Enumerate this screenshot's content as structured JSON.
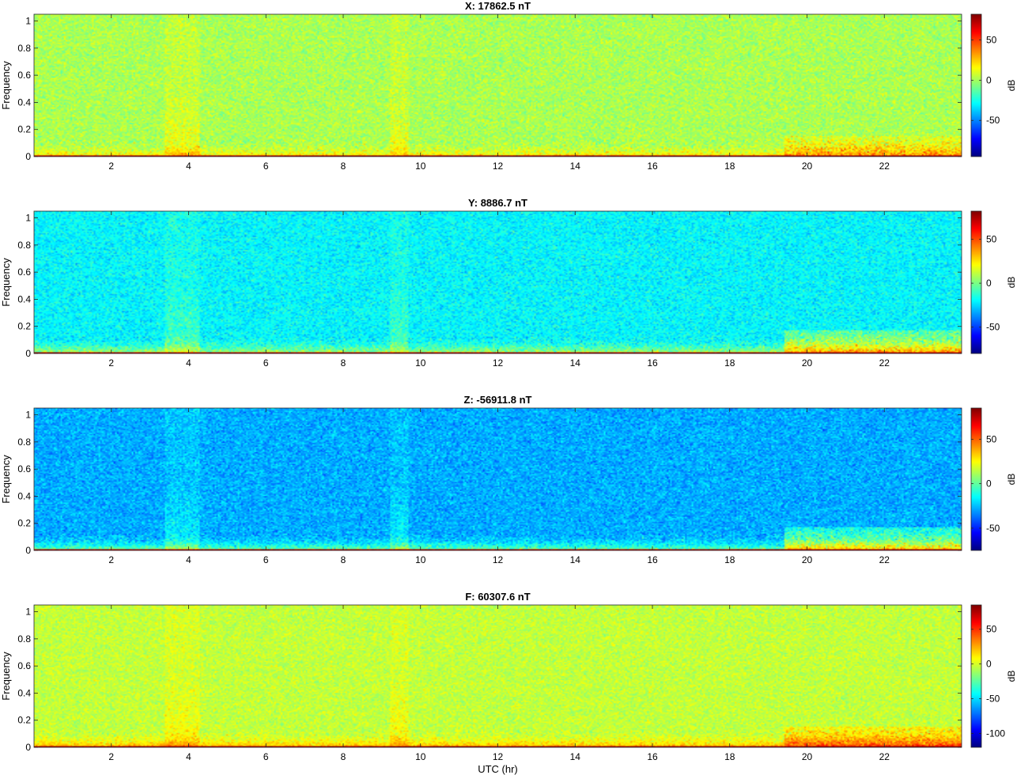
{
  "xlabel": "UTC (hr)",
  "chart_data": [
    {
      "type": "heatmap",
      "title": "X: 17862.5 nT",
      "ylabel": "Frequency",
      "colorbar_label": "dB",
      "xlim": [
        0,
        24
      ],
      "ylim": [
        0,
        1.05
      ],
      "xticks": [
        2,
        4,
        6,
        8,
        10,
        12,
        14,
        16,
        18,
        20,
        22
      ],
      "yticks": [
        0,
        0.2,
        0.4,
        0.6,
        0.8,
        1
      ],
      "clim": [
        -95,
        82
      ],
      "cticks": [
        -50,
        0,
        50
      ],
      "background_db": 1,
      "low_band_db": 20,
      "dc_db": 82,
      "late_band_db": 32,
      "late_band_start_hr": 19.4,
      "late_band_top": 0.15
    },
    {
      "type": "heatmap",
      "title": "Y: 8886.7 nT",
      "ylabel": "Frequency",
      "colorbar_label": "dB",
      "xlim": [
        0,
        24
      ],
      "ylim": [
        0,
        1.05
      ],
      "xticks": [
        2,
        4,
        6,
        8,
        10,
        12,
        14,
        16,
        18,
        20,
        22
      ],
      "yticks": [
        0,
        0.2,
        0.4,
        0.6,
        0.8,
        1
      ],
      "clim": [
        -80,
        82
      ],
      "cticks": [
        -50,
        0,
        50
      ],
      "background_db": -20,
      "low_band_db": 10,
      "dc_db": 82,
      "late_band_db": 35,
      "late_band_start_hr": 19.4,
      "late_band_top": 0.17
    },
    {
      "type": "heatmap",
      "title": "Z: -56911.8 nT",
      "ylabel": "Frequency",
      "colorbar_label": "dB",
      "xlim": [
        0,
        24
      ],
      "ylim": [
        0,
        1.05
      ],
      "xticks": [
        2,
        4,
        6,
        8,
        10,
        12,
        14,
        16,
        18,
        20,
        22
      ],
      "yticks": [
        0,
        0.2,
        0.4,
        0.6,
        0.8,
        1
      ],
      "clim": [
        -75,
        85
      ],
      "cticks": [
        -50,
        0,
        50
      ],
      "background_db": -28,
      "low_band_db": 5,
      "dc_db": 85,
      "late_band_db": 30,
      "late_band_start_hr": 19.4,
      "late_band_top": 0.17
    },
    {
      "type": "heatmap",
      "title": "F: 60307.6 nT",
      "ylabel": "Frequency",
      "colorbar_label": "dB",
      "xlim": [
        0,
        24
      ],
      "ylim": [
        0,
        1.05
      ],
      "xticks": [
        2,
        4,
        6,
        8,
        10,
        12,
        14,
        16,
        18,
        20,
        22
      ],
      "yticks": [
        0,
        0.2,
        0.4,
        0.6,
        0.8,
        1
      ],
      "clim": [
        -120,
        85
      ],
      "cticks": [
        -100,
        -50,
        0,
        50
      ],
      "background_db": -4,
      "low_band_db": 25,
      "dc_db": 85,
      "late_band_db": 40,
      "late_band_start_hr": 19.4,
      "late_band_top": 0.15
    }
  ]
}
